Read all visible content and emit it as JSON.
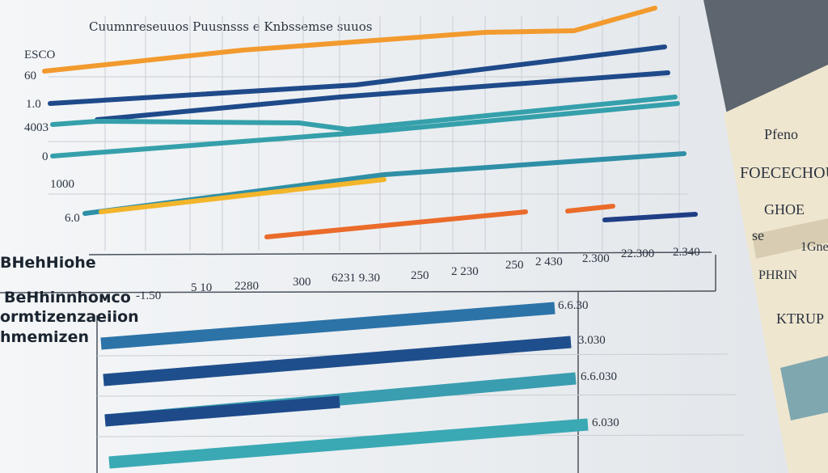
{
  "header": {
    "title": "Cuumnreseuuos Puusnsss e Knbssemse suuos"
  },
  "top_axis": {
    "labels": [
      "ESCO",
      "60",
      "1.0",
      "4003",
      "0",
      "1000",
      "6.0"
    ]
  },
  "x_axis": {
    "labels": [
      "2280",
      "300",
      "6231 9.30",
      "250",
      "2 230",
      "250",
      "2 430",
      "2.300",
      "22.300",
      "2.340"
    ]
  },
  "lower_table": {
    "row_labels": [
      "BHehHiohe",
      "BeHhinnhoмco",
      "ormtizenzaeiion",
      "hmemizen"
    ],
    "header_ticks": [
      "-1.50",
      "5 10"
    ],
    "right_values": [
      "6.6.30",
      "3.030",
      "6.6.030",
      "6.030"
    ]
  },
  "side_card": {
    "texts": [
      "Pfeno",
      "FOECECHOUT",
      "GHOE",
      "se",
      "1Gne",
      "PHRIN",
      "KTRUP"
    ]
  }
}
